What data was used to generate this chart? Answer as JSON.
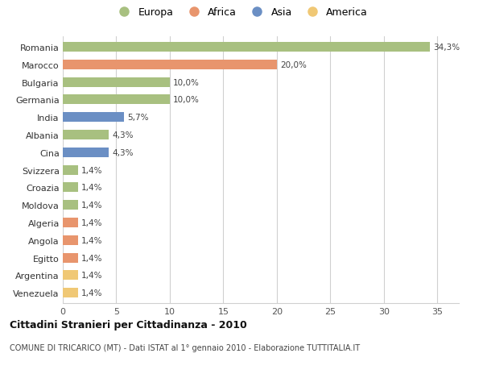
{
  "categories": [
    "Venezuela",
    "Argentina",
    "Egitto",
    "Angola",
    "Algeria",
    "Moldova",
    "Croazia",
    "Svizzera",
    "Cina",
    "Albania",
    "India",
    "Germania",
    "Bulgaria",
    "Marocco",
    "Romania"
  ],
  "values": [
    1.4,
    1.4,
    1.4,
    1.4,
    1.4,
    1.4,
    1.4,
    1.4,
    4.3,
    4.3,
    5.7,
    10.0,
    10.0,
    20.0,
    34.3
  ],
  "colors": [
    "#f0c875",
    "#f0c875",
    "#e8956d",
    "#e8956d",
    "#e8956d",
    "#a8c080",
    "#a8c080",
    "#a8c080",
    "#6b8fc4",
    "#a8c080",
    "#6b8fc4",
    "#a8c080",
    "#a8c080",
    "#e8956d",
    "#a8c080"
  ],
  "labels": [
    "1,4%",
    "1,4%",
    "1,4%",
    "1,4%",
    "1,4%",
    "1,4%",
    "1,4%",
    "1,4%",
    "4,3%",
    "4,3%",
    "5,7%",
    "10,0%",
    "10,0%",
    "20,0%",
    "34,3%"
  ],
  "legend_items": [
    {
      "label": "Europa",
      "color": "#a8c080"
    },
    {
      "label": "Africa",
      "color": "#e8956d"
    },
    {
      "label": "Asia",
      "color": "#6b8fc4"
    },
    {
      "label": "America",
      "color": "#f0c875"
    }
  ],
  "xlim": [
    0,
    37
  ],
  "xticks": [
    0,
    5,
    10,
    15,
    20,
    25,
    30,
    35
  ],
  "title": "Cittadini Stranieri per Cittadinanza - 2010",
  "subtitle": "COMUNE DI TRICARICO (MT) - Dati ISTAT al 1° gennaio 2010 - Elaborazione TUTTITALIA.IT",
  "background_color": "#ffffff",
  "grid_color": "#d0d0d0",
  "bar_height": 0.55
}
